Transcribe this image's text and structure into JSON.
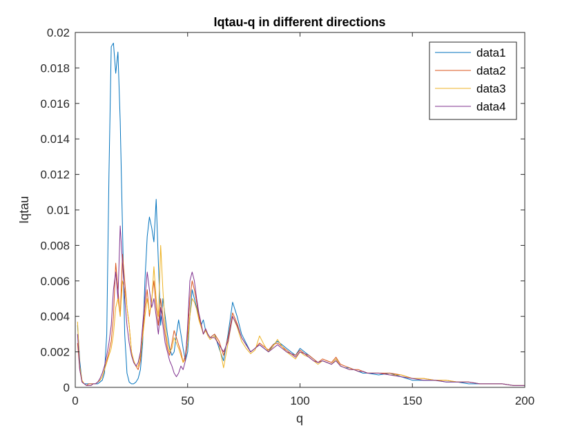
{
  "chart_data": {
    "type": "line",
    "title": "Iqtau-q in different directions",
    "xlabel": "q",
    "ylabel": "Iqtau",
    "xlim": [
      0,
      200
    ],
    "ylim": [
      0,
      0.02
    ],
    "xticks": [
      "0",
      "50",
      "100",
      "150",
      "200"
    ],
    "yticks": [
      "0",
      "0.002",
      "0.004",
      "0.006",
      "0.008",
      "0.01",
      "0.012",
      "0.014",
      "0.016",
      "0.018",
      "0.02"
    ],
    "grid": false,
    "legend_position": "top-right",
    "series": [
      {
        "name": "data1",
        "color": "#0072BD",
        "x": [
          1,
          2,
          3,
          4,
          5,
          6,
          7,
          8,
          9,
          10,
          11,
          12,
          13,
          14,
          15,
          16,
          17,
          18,
          19,
          20,
          21,
          22,
          23,
          24,
          25,
          26,
          27,
          28,
          29,
          30,
          31,
          32,
          33,
          34,
          35,
          36,
          37,
          38,
          39,
          40,
          41,
          42,
          43,
          44,
          45,
          46,
          47,
          48,
          49,
          50,
          51,
          52,
          53,
          54,
          55,
          56,
          57,
          58,
          59,
          60,
          62,
          64,
          66,
          68,
          70,
          72,
          74,
          76,
          78,
          80,
          82,
          84,
          86,
          88,
          90,
          92,
          94,
          96,
          98,
          100,
          102,
          104,
          106,
          108,
          110,
          112,
          114,
          116,
          118,
          120,
          122,
          124,
          126,
          128,
          130,
          135,
          140,
          145,
          150,
          155,
          160,
          165,
          170,
          175,
          180,
          185,
          190,
          195,
          200
        ],
        "y": [
          0.0035,
          0.0015,
          0.0003,
          0.0002,
          0.0002,
          0.0002,
          0.0002,
          0.0002,
          0.0002,
          0.0002,
          0.0003,
          0.0004,
          0.0008,
          0.003,
          0.012,
          0.0192,
          0.0194,
          0.0177,
          0.0189,
          0.015,
          0.009,
          0.003,
          0.0008,
          0.0003,
          0.0002,
          0.0002,
          0.0003,
          0.0005,
          0.001,
          0.0025,
          0.006,
          0.0085,
          0.0096,
          0.009,
          0.0082,
          0.0106,
          0.007,
          0.0035,
          0.005,
          0.004,
          0.003,
          0.0022,
          0.0018,
          0.002,
          0.003,
          0.0038,
          0.003,
          0.0022,
          0.0015,
          0.002,
          0.004,
          0.0055,
          0.005,
          0.0045,
          0.004,
          0.0035,
          0.0038,
          0.0032,
          0.003,
          0.0028,
          0.003,
          0.0022,
          0.0015,
          0.003,
          0.0048,
          0.004,
          0.003,
          0.0025,
          0.002,
          0.0022,
          0.0024,
          0.0022,
          0.002,
          0.0024,
          0.0026,
          0.0024,
          0.0022,
          0.002,
          0.0018,
          0.0022,
          0.002,
          0.0018,
          0.0016,
          0.0014,
          0.0015,
          0.0014,
          0.0013,
          0.0016,
          0.0012,
          0.0011,
          0.0011,
          0.001,
          0.0009,
          0.0008,
          0.0008,
          0.0007,
          0.0008,
          0.0006,
          0.0004,
          0.0004,
          0.0004,
          0.0003,
          0.0003,
          0.0002,
          0.0002,
          0.0002,
          0.0002,
          0.0001,
          0.0001
        ]
      },
      {
        "name": "data2",
        "color": "#D95319",
        "x": [
          1,
          2,
          3,
          4,
          5,
          6,
          7,
          8,
          9,
          10,
          11,
          12,
          13,
          14,
          15,
          16,
          17,
          18,
          19,
          20,
          21,
          22,
          23,
          24,
          25,
          26,
          27,
          28,
          29,
          30,
          31,
          32,
          33,
          34,
          35,
          36,
          37,
          38,
          39,
          40,
          41,
          42,
          43,
          44,
          45,
          46,
          47,
          48,
          49,
          50,
          51,
          52,
          53,
          54,
          55,
          56,
          57,
          58,
          59,
          60,
          62,
          64,
          66,
          68,
          70,
          72,
          74,
          76,
          78,
          80,
          82,
          84,
          86,
          88,
          90,
          92,
          94,
          96,
          98,
          100,
          102,
          104,
          106,
          108,
          110,
          112,
          114,
          116,
          118,
          120,
          122,
          124,
          126,
          128,
          130,
          135,
          140,
          145,
          150,
          155,
          160,
          165,
          170,
          175,
          180,
          185,
          190,
          195,
          200
        ],
        "y": [
          0.0025,
          0.001,
          0.0003,
          0.0002,
          0.0001,
          0.0002,
          0.0002,
          0.0002,
          0.0002,
          0.0003,
          0.0004,
          0.0006,
          0.001,
          0.0015,
          0.002,
          0.0026,
          0.004,
          0.007,
          0.0055,
          0.004,
          0.0075,
          0.006,
          0.0045,
          0.0035,
          0.002,
          0.0015,
          0.0012,
          0.001,
          0.0015,
          0.003,
          0.0045,
          0.0055,
          0.004,
          0.005,
          0.006,
          0.0045,
          0.0035,
          0.005,
          0.004,
          0.003,
          0.0022,
          0.0018,
          0.0025,
          0.0032,
          0.0028,
          0.0024,
          0.002,
          0.0014,
          0.0018,
          0.003,
          0.005,
          0.006,
          0.0055,
          0.0048,
          0.004,
          0.0035,
          0.003,
          0.0033,
          0.003,
          0.0028,
          0.003,
          0.0026,
          0.0018,
          0.0028,
          0.0042,
          0.0036,
          0.0028,
          0.0024,
          0.002,
          0.0022,
          0.0025,
          0.0023,
          0.0021,
          0.0024,
          0.0025,
          0.0023,
          0.0021,
          0.0019,
          0.0018,
          0.0021,
          0.0019,
          0.0018,
          0.0016,
          0.0014,
          0.0016,
          0.0015,
          0.0014,
          0.0017,
          0.0013,
          0.0012,
          0.0011,
          0.001,
          0.001,
          0.0009,
          0.0008,
          0.0008,
          0.0008,
          0.0007,
          0.0005,
          0.0005,
          0.0004,
          0.0004,
          0.0003,
          0.0003,
          0.0002,
          0.0002,
          0.0002,
          0.0001,
          0.0001
        ]
      },
      {
        "name": "data3",
        "color": "#EDB120",
        "x": [
          1,
          2,
          3,
          4,
          5,
          6,
          7,
          8,
          9,
          10,
          11,
          12,
          13,
          14,
          15,
          16,
          17,
          18,
          19,
          20,
          21,
          22,
          23,
          24,
          25,
          26,
          27,
          28,
          29,
          30,
          31,
          32,
          33,
          34,
          35,
          36,
          37,
          38,
          39,
          40,
          41,
          42,
          43,
          44,
          45,
          46,
          47,
          48,
          49,
          50,
          51,
          52,
          53,
          54,
          55,
          56,
          57,
          58,
          59,
          60,
          62,
          64,
          66,
          68,
          70,
          72,
          74,
          76,
          78,
          80,
          82,
          84,
          86,
          88,
          90,
          92,
          94,
          96,
          98,
          100,
          102,
          104,
          106,
          108,
          110,
          112,
          114,
          116,
          118,
          120,
          122,
          124,
          126,
          128,
          130,
          135,
          140,
          145,
          150,
          155,
          160,
          165,
          170,
          175,
          180,
          185,
          190,
          195,
          200
        ],
        "y": [
          0.0037,
          0.0012,
          0.0004,
          0.0002,
          0.0001,
          0.0001,
          0.0001,
          0.0002,
          0.0002,
          0.0003,
          0.0004,
          0.0006,
          0.001,
          0.0014,
          0.0018,
          0.0022,
          0.003,
          0.0045,
          0.005,
          0.004,
          0.006,
          0.0055,
          0.0045,
          0.0035,
          0.002,
          0.0015,
          0.0012,
          0.0012,
          0.0018,
          0.0028,
          0.004,
          0.005,
          0.0042,
          0.0048,
          0.0068,
          0.005,
          0.004,
          0.008,
          0.0055,
          0.0035,
          0.0025,
          0.002,
          0.0022,
          0.0028,
          0.0025,
          0.0022,
          0.0018,
          0.0014,
          0.0016,
          0.0025,
          0.004,
          0.005,
          0.0048,
          0.0044,
          0.0038,
          0.0034,
          0.003,
          0.0032,
          0.0029,
          0.0027,
          0.0029,
          0.0024,
          0.0011,
          0.0025,
          0.004,
          0.0034,
          0.0026,
          0.0022,
          0.0019,
          0.0021,
          0.0029,
          0.0024,
          0.002,
          0.0023,
          0.0027,
          0.0023,
          0.002,
          0.0018,
          0.0016,
          0.002,
          0.0018,
          0.0017,
          0.0015,
          0.0013,
          0.0015,
          0.0014,
          0.0013,
          0.0016,
          0.0012,
          0.0011,
          0.001,
          0.001,
          0.0009,
          0.0009,
          0.0008,
          0.0008,
          0.0007,
          0.0007,
          0.0005,
          0.0005,
          0.0004,
          0.0004,
          0.0003,
          0.0003,
          0.0002,
          0.0002,
          0.0002,
          0.0001,
          0.0001
        ]
      },
      {
        "name": "data4",
        "color": "#7E2F8E",
        "x": [
          1,
          2,
          3,
          4,
          5,
          6,
          7,
          8,
          9,
          10,
          11,
          12,
          13,
          14,
          15,
          16,
          17,
          18,
          19,
          20,
          21,
          22,
          23,
          24,
          25,
          26,
          27,
          28,
          29,
          30,
          31,
          32,
          33,
          34,
          35,
          36,
          37,
          38,
          39,
          40,
          41,
          42,
          43,
          44,
          45,
          46,
          47,
          48,
          49,
          50,
          51,
          52,
          53,
          54,
          55,
          56,
          57,
          58,
          59,
          60,
          62,
          64,
          66,
          68,
          70,
          72,
          74,
          76,
          78,
          80,
          82,
          84,
          86,
          88,
          90,
          92,
          94,
          96,
          98,
          100,
          102,
          104,
          106,
          108,
          110,
          112,
          114,
          116,
          118,
          120,
          122,
          124,
          126,
          128,
          130,
          135,
          140,
          145,
          150,
          155,
          160,
          165,
          170,
          175,
          180,
          185,
          190,
          195,
          200
        ],
        "y": [
          0.003,
          0.001,
          0.0003,
          0.0002,
          0.0001,
          0.0001,
          0.0001,
          0.0002,
          0.0002,
          0.0003,
          0.0005,
          0.0008,
          0.0012,
          0.0018,
          0.0025,
          0.0035,
          0.0055,
          0.0065,
          0.005,
          0.0091,
          0.007,
          0.005,
          0.0035,
          0.0025,
          0.0018,
          0.0014,
          0.0012,
          0.0014,
          0.002,
          0.0035,
          0.005,
          0.0065,
          0.0055,
          0.0045,
          0.005,
          0.004,
          0.003,
          0.0045,
          0.0035,
          0.0025,
          0.002,
          0.0015,
          0.0012,
          0.0008,
          0.0006,
          0.0008,
          0.0012,
          0.001,
          0.0015,
          0.0035,
          0.006,
          0.0065,
          0.006,
          0.005,
          0.0042,
          0.0036,
          0.003,
          0.0033,
          0.003,
          0.0028,
          0.0028,
          0.0024,
          0.002,
          0.0026,
          0.004,
          0.0035,
          0.0028,
          0.0024,
          0.002,
          0.0022,
          0.0024,
          0.0022,
          0.002,
          0.0022,
          0.0024,
          0.0022,
          0.002,
          0.0019,
          0.0017,
          0.002,
          0.0019,
          0.0017,
          0.0015,
          0.0014,
          0.0015,
          0.0014,
          0.0013,
          0.0015,
          0.0012,
          0.0011,
          0.001,
          0.001,
          0.0009,
          0.0009,
          0.0008,
          0.0008,
          0.0007,
          0.0006,
          0.0005,
          0.0004,
          0.0004,
          0.0003,
          0.0003,
          0.0003,
          0.0002,
          0.0002,
          0.0002,
          0.0001,
          0.0001
        ]
      }
    ]
  }
}
